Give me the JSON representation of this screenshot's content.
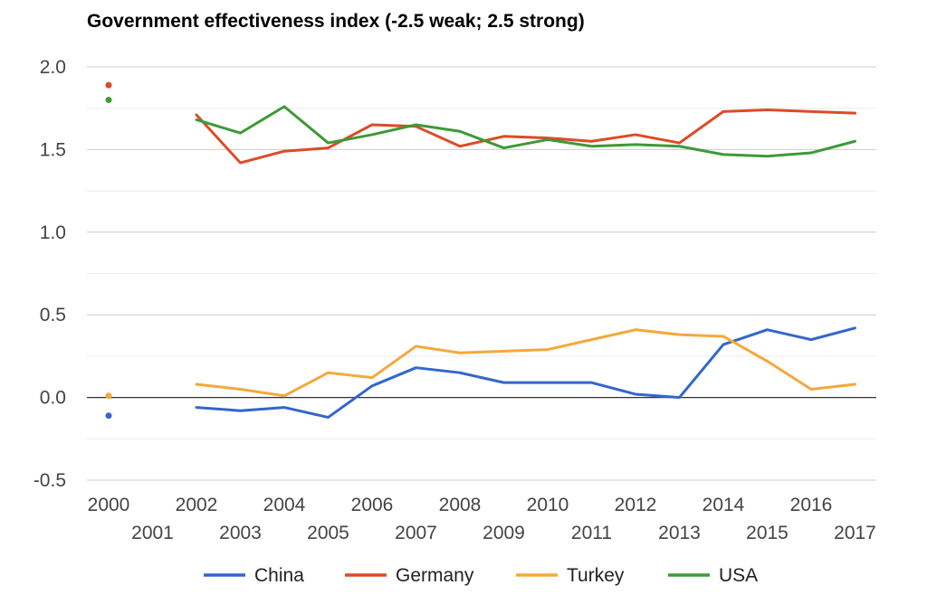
{
  "chart_data": {
    "type": "line",
    "title": "Government effectiveness index (-2.5 weak; 2.5 strong)",
    "xlabel": "",
    "ylabel": "",
    "x": [
      "2000",
      "2001",
      "2002",
      "2003",
      "2004",
      "2005",
      "2006",
      "2007",
      "2008",
      "2009",
      "2010",
      "2011",
      "2012",
      "2013",
      "2014",
      "2015",
      "2016",
      "2017"
    ],
    "ylim": [
      -0.5,
      2.0
    ],
    "yticks": [
      "2.0",
      "1.5",
      "1.0",
      "0.5",
      "0.0",
      "-0.5"
    ],
    "grid": true,
    "legend_position": "bottom",
    "series": [
      {
        "name": "China",
        "color": "#3366cc",
        "values": [
          -0.11,
          null,
          -0.06,
          -0.08,
          -0.06,
          -0.12,
          0.07,
          0.18,
          0.15,
          0.09,
          0.09,
          0.09,
          0.02,
          0.0,
          0.32,
          0.41,
          0.35,
          0.42
        ]
      },
      {
        "name": "Germany",
        "color": "#dc4b26",
        "values": [
          1.89,
          null,
          1.71,
          1.42,
          1.49,
          1.51,
          1.65,
          1.64,
          1.52,
          1.58,
          1.57,
          1.55,
          1.59,
          1.54,
          1.73,
          1.74,
          1.73,
          1.72
        ]
      },
      {
        "name": "Turkey",
        "color": "#f4a83a",
        "values": [
          0.01,
          null,
          0.08,
          0.05,
          0.01,
          0.15,
          0.12,
          0.31,
          0.27,
          0.28,
          0.29,
          0.35,
          0.41,
          0.38,
          0.37,
          0.22,
          0.05,
          0.08
        ]
      },
      {
        "name": "USA",
        "color": "#3d9a36",
        "values": [
          1.8,
          null,
          1.68,
          1.6,
          1.76,
          1.54,
          1.59,
          1.65,
          1.61,
          1.51,
          1.56,
          1.52,
          1.53,
          1.52,
          1.47,
          1.46,
          1.48,
          1.55
        ]
      }
    ]
  }
}
